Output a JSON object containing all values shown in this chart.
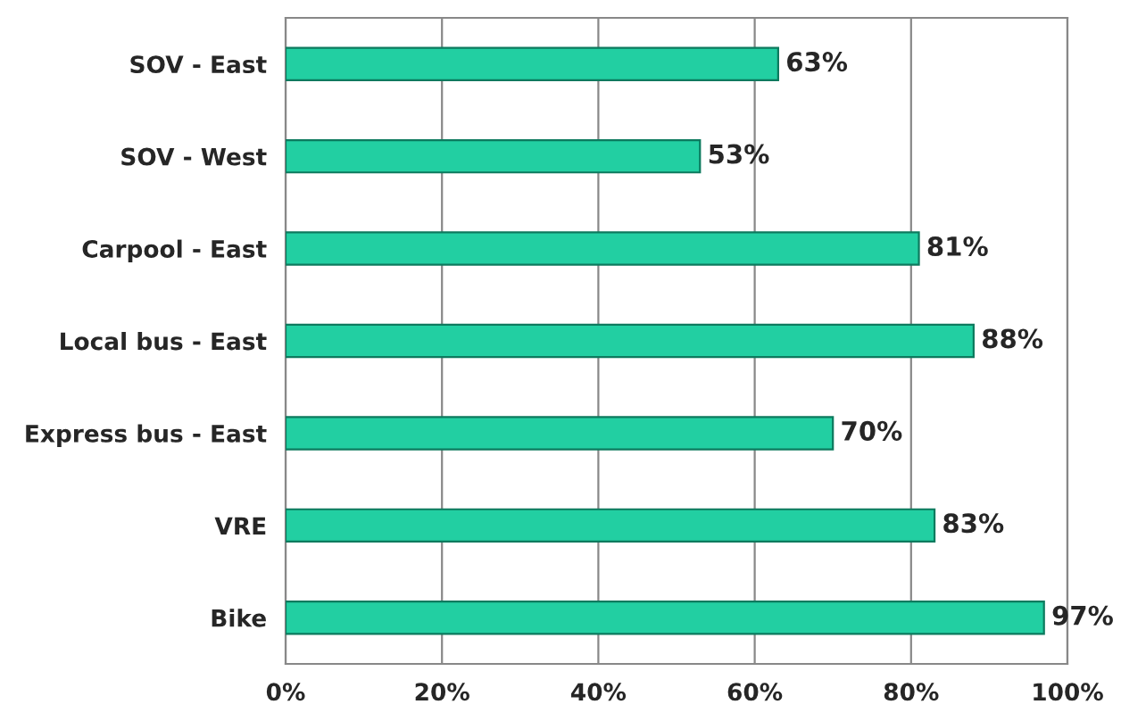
{
  "chart_data": {
    "type": "bar",
    "orientation": "horizontal",
    "categories": [
      "SOV - East",
      "SOV - West",
      "Carpool - East",
      "Local bus - East",
      "Express bus - East",
      "VRE",
      "Bike"
    ],
    "values": [
      63,
      53,
      81,
      88,
      70,
      83,
      97
    ],
    "value_labels": [
      "63%",
      "53%",
      "81%",
      "88%",
      "70%",
      "83%",
      "97%"
    ],
    "color": "#22cfa2",
    "xlim": [
      0,
      100
    ],
    "xticks": [
      {
        "value": 0,
        "label": "0%"
      },
      {
        "value": 20,
        "label": "20%"
      },
      {
        "value": 40,
        "label": "40%"
      },
      {
        "value": 60,
        "label": "60%"
      },
      {
        "value": 80,
        "label": "80%"
      },
      {
        "value": 100,
        "label": "100%"
      }
    ],
    "grid": "x"
  }
}
